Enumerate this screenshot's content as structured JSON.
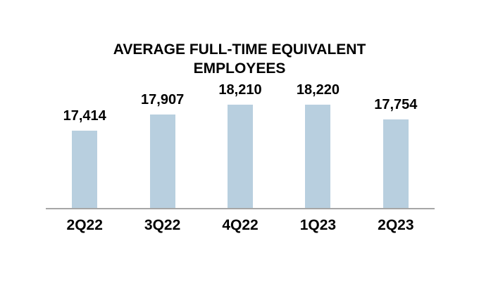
{
  "chart_data": {
    "type": "bar",
    "title": "AVERAGE FULL-TIME EQUIVALENT EMPLOYEES",
    "categories": [
      "2Q22",
      "3Q22",
      "4Q22",
      "1Q23",
      "2Q23"
    ],
    "values": [
      17414,
      17907,
      18210,
      18220,
      17754
    ],
    "value_labels": [
      "17,414",
      "17,907",
      "18,210",
      "18,220",
      "17,754"
    ],
    "xlabel": "",
    "ylabel": "",
    "ylim": [
      15000,
      18900
    ],
    "grid": false,
    "legend": null,
    "colors": {
      "bar": "#b8cfdf",
      "axis": "#a6a6a6",
      "text": "#000000",
      "background": "#ffffff"
    }
  }
}
